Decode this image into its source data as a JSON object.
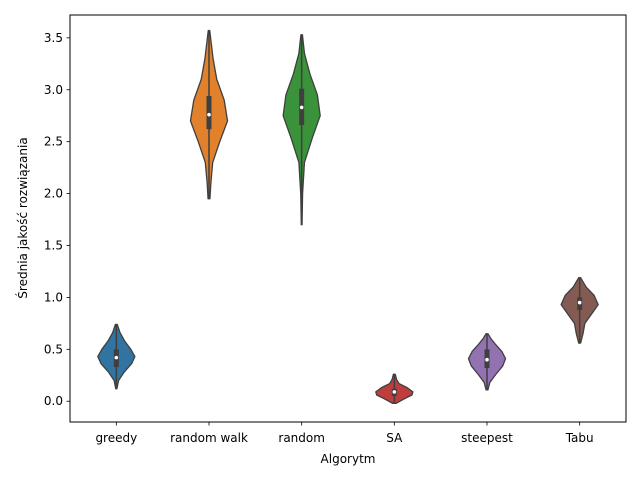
{
  "chart_data": {
    "type": "violin",
    "xlabel": "Algorytm",
    "ylabel": "Średnia jakość rozwiązania",
    "ylim": [
      -0.2,
      3.72
    ],
    "yticks": [
      0.0,
      0.5,
      1.0,
      1.5,
      2.0,
      2.5,
      3.0,
      3.5
    ],
    "ytick_labels": [
      "0.0",
      "0.5",
      "1.0",
      "1.5",
      "2.0",
      "2.5",
      "3.0",
      "3.5"
    ],
    "grid": false,
    "categories": [
      "greedy",
      "random walk",
      "random",
      "SA",
      "steepest",
      "Tabu"
    ],
    "colors": [
      "#3274a1",
      "#e1812c",
      "#3a923a",
      "#c03d3e",
      "#9372b2",
      "#845b53"
    ],
    "series": [
      {
        "category": "greedy",
        "min": 0.12,
        "q1": 0.33,
        "median": 0.42,
        "q3": 0.5,
        "max": 0.74,
        "profile": [
          [
            0.12,
            0.03
          ],
          [
            0.2,
            0.12
          ],
          [
            0.28,
            0.42
          ],
          [
            0.36,
            0.82
          ],
          [
            0.43,
            1.0
          ],
          [
            0.5,
            0.78
          ],
          [
            0.58,
            0.45
          ],
          [
            0.66,
            0.2
          ],
          [
            0.74,
            0.05
          ]
        ]
      },
      {
        "category": "random walk",
        "min": 1.95,
        "q1": 2.62,
        "median": 2.76,
        "q3": 2.94,
        "max": 3.57,
        "profile": [
          [
            1.95,
            0.05
          ],
          [
            2.1,
            0.1
          ],
          [
            2.3,
            0.2
          ],
          [
            2.5,
            0.58
          ],
          [
            2.7,
            1.0
          ],
          [
            2.9,
            0.82
          ],
          [
            3.1,
            0.42
          ],
          [
            3.3,
            0.22
          ],
          [
            3.45,
            0.12
          ],
          [
            3.57,
            0.04
          ]
        ]
      },
      {
        "category": "random",
        "min": 1.7,
        "q1": 2.66,
        "median": 2.83,
        "q3": 3.01,
        "max": 3.53,
        "profile": [
          [
            1.7,
            0.02
          ],
          [
            2.0,
            0.05
          ],
          [
            2.3,
            0.15
          ],
          [
            2.55,
            0.6
          ],
          [
            2.75,
            1.0
          ],
          [
            2.95,
            0.85
          ],
          [
            3.15,
            0.45
          ],
          [
            3.35,
            0.15
          ],
          [
            3.53,
            0.04
          ]
        ]
      },
      {
        "category": "SA",
        "min": -0.02,
        "q1": 0.05,
        "median": 0.09,
        "q3": 0.12,
        "max": 0.26,
        "profile": [
          [
            -0.02,
            0.1
          ],
          [
            0.02,
            0.5
          ],
          [
            0.06,
            0.95
          ],
          [
            0.09,
            1.0
          ],
          [
            0.13,
            0.7
          ],
          [
            0.17,
            0.25
          ],
          [
            0.21,
            0.12
          ],
          [
            0.26,
            0.05
          ]
        ]
      },
      {
        "category": "steepest",
        "min": 0.11,
        "q1": 0.32,
        "median": 0.4,
        "q3": 0.5,
        "max": 0.65,
        "profile": [
          [
            0.11,
            0.05
          ],
          [
            0.18,
            0.15
          ],
          [
            0.26,
            0.48
          ],
          [
            0.34,
            0.85
          ],
          [
            0.41,
            1.0
          ],
          [
            0.48,
            0.8
          ],
          [
            0.55,
            0.45
          ],
          [
            0.6,
            0.22
          ],
          [
            0.65,
            0.05
          ]
        ]
      },
      {
        "category": "Tabu",
        "min": 0.56,
        "q1": 0.88,
        "median": 0.95,
        "q3": 1.0,
        "max": 1.19,
        "profile": [
          [
            0.56,
            0.05
          ],
          [
            0.65,
            0.18
          ],
          [
            0.75,
            0.28
          ],
          [
            0.83,
            0.6
          ],
          [
            0.93,
            1.0
          ],
          [
            1.02,
            0.78
          ],
          [
            1.1,
            0.35
          ],
          [
            1.19,
            0.05
          ]
        ]
      }
    ]
  }
}
